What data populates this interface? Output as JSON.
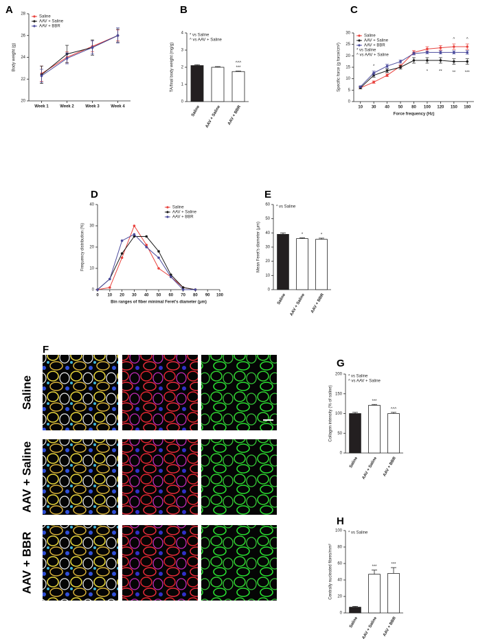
{
  "chart_data": [
    {
      "panel": "A",
      "type": "line",
      "ylabel": "Body weight (g)",
      "categories": [
        "Week 1",
        "Week 2",
        "Week 3",
        "Week 4"
      ],
      "ylim": [
        20,
        28
      ],
      "yticks": [
        20,
        22,
        24,
        26,
        28
      ],
      "legend": "upper left",
      "series": [
        {
          "name": "Saline",
          "color": "#e8413c",
          "values": [
            22.5,
            24.0,
            25.0,
            26.0
          ],
          "errors": [
            0.7,
            0.5,
            0.5,
            0.5
          ]
        },
        {
          "name": "AAV + Saline",
          "color": "#1a1a1a",
          "values": [
            22.4,
            24.3,
            24.9,
            26.0
          ],
          "errors": [
            0.8,
            0.8,
            0.7,
            0.6
          ]
        },
        {
          "name": "AAV + BBR",
          "color": "#4a4a9c",
          "values": [
            22.3,
            23.9,
            24.9,
            26.0
          ],
          "errors": [
            0.6,
            0.5,
            0.6,
            0.7
          ]
        }
      ]
    },
    {
      "panel": "B",
      "type": "bar",
      "ylabel": "TA/final body weight (mg/g)",
      "categories": [
        "Saline",
        "AAV + Saline",
        "AAV + BBR"
      ],
      "values": [
        2.1,
        2.0,
        1.75
      ],
      "errors": [
        0.05,
        0.04,
        0.03
      ],
      "colors": [
        "#231f20",
        "#ffffff",
        "#ffffff"
      ],
      "ylim": [
        0,
        4
      ],
      "yticks": [
        0,
        1,
        2,
        3,
        4
      ],
      "notes": [
        "* vs Saline",
        "^ vs AAV + Saline"
      ],
      "significance": [
        null,
        null,
        [
          "***",
          "^^^"
        ]
      ]
    },
    {
      "panel": "C",
      "type": "line",
      "ylabel": "Specific force (g force/cm²)",
      "xlabel": "Force frequency (Hz)",
      "categories": [
        "10",
        "30",
        "40",
        "50",
        "80",
        "100",
        "120",
        "150",
        "180"
      ],
      "ylim": [
        0,
        30
      ],
      "yticks": [
        0,
        5,
        10,
        15,
        20,
        25,
        30
      ],
      "legend": "upper left",
      "notes": [
        "* vs Saline",
        "^ vs AAV + Saline"
      ],
      "series": [
        {
          "name": "Saline",
          "color": "#e8413c",
          "values": [
            6,
            8.5,
            11.5,
            15.5,
            21.5,
            23,
            23.5,
            24,
            24
          ],
          "errors": [
            0.4,
            0.5,
            0.6,
            0.7,
            0.8,
            1.0,
            1.0,
            1.2,
            1.2
          ]
        },
        {
          "name": "AAV + Saline",
          "color": "#1a1a1a",
          "values": [
            6,
            11.5,
            13.5,
            15,
            18,
            18,
            18,
            17.5,
            17.5
          ],
          "errors": [
            0.4,
            0.8,
            0.8,
            0.8,
            1.2,
            1.2,
            1.2,
            1.2,
            1.2
          ],
          "significance": [
            null,
            null,
            null,
            null,
            null,
            "*",
            "**",
            "**",
            "***"
          ]
        },
        {
          "name": "AAV + BBR",
          "color": "#4a4a9c",
          "values": [
            6.5,
            12.5,
            15.5,
            17.5,
            21,
            21.5,
            21.5,
            21.5,
            21.5
          ],
          "errors": [
            0.4,
            0.8,
            0.8,
            0.7,
            0.6,
            0.6,
            0.7,
            0.7,
            0.8
          ],
          "significance": [
            null,
            "*",
            null,
            null,
            null,
            null,
            null,
            "^",
            "^"
          ]
        }
      ]
    },
    {
      "panel": "D",
      "type": "line",
      "ylabel": "Frequency distribution (%)",
      "xlabel": "Bin ranges of fiber minimal Feret's diameter (μm)",
      "x": [
        0,
        10,
        20,
        30,
        40,
        50,
        60,
        70,
        80
      ],
      "xlim": [
        0,
        100
      ],
      "xticks": [
        0,
        10,
        20,
        30,
        40,
        50,
        60,
        70,
        80,
        90,
        100
      ],
      "ylim": [
        0,
        40
      ],
      "yticks": [
        0,
        10,
        20,
        30,
        40
      ],
      "legend": "upper right",
      "series": [
        {
          "name": "Saline",
          "color": "#e8413c",
          "values": [
            0,
            1,
            15,
            30,
            21,
            10,
            6,
            1,
            0
          ]
        },
        {
          "name": "AAV + Saline",
          "color": "#1a1a1a",
          "values": [
            0,
            5,
            17,
            25,
            25,
            18,
            7,
            1,
            0
          ]
        },
        {
          "name": "AAV + BBR",
          "color": "#4a4a9c",
          "values": [
            0,
            5,
            23,
            26,
            20,
            15,
            6,
            0,
            0
          ]
        }
      ]
    },
    {
      "panel": "E",
      "type": "bar",
      "ylabel": "Mean Feret's diameter (μm)",
      "categories": [
        "Saline",
        "AAV + Saline",
        "AAV + BBR"
      ],
      "values": [
        39,
        36,
        35.5
      ],
      "errors": [
        1,
        0.5,
        0.8
      ],
      "colors": [
        "#231f20",
        "#ffffff",
        "#ffffff"
      ],
      "ylim": [
        0,
        60
      ],
      "yticks": [
        0,
        10,
        20,
        30,
        40,
        50,
        60
      ],
      "notes": [
        "* vs Saline"
      ],
      "significance": [
        null,
        [
          "*"
        ],
        [
          "*"
        ]
      ]
    },
    {
      "panel": "G",
      "type": "bar",
      "ylabel": "Collagen intensity (% of saline)",
      "categories": [
        "Saline",
        "AAV + Saline",
        "AAV + BBR"
      ],
      "values": [
        100,
        121,
        100
      ],
      "errors": [
        3,
        2,
        3
      ],
      "colors": [
        "#231f20",
        "#ffffff",
        "#ffffff"
      ],
      "ylim": [
        0,
        200
      ],
      "yticks": [
        0,
        50,
        100,
        150,
        200
      ],
      "notes": [
        "* vs Saline",
        "^ vs AAV + Saline"
      ],
      "significance": [
        null,
        [
          "***"
        ],
        [
          "^^^"
        ]
      ]
    },
    {
      "panel": "H",
      "type": "bar",
      "ylabel": "Centrally nucleated fibres/mm²",
      "categories": [
        "Saline",
        "AAV + Saline",
        "AAV + BBR"
      ],
      "values": [
        7,
        47,
        48
      ],
      "errors": [
        1,
        5,
        7
      ],
      "colors": [
        "#231f20",
        "#ffffff",
        "#ffffff"
      ],
      "ylim": [
        0,
        100
      ],
      "yticks": [
        0,
        20,
        40,
        60,
        80,
        100
      ],
      "notes": [
        "* vs Saline"
      ],
      "significance": [
        null,
        [
          "***"
        ],
        [
          "***"
        ]
      ]
    }
  ],
  "figure_f": {
    "panel": "F",
    "rows": [
      "Saline",
      "AAV + Saline",
      "AAV + BBR"
    ]
  }
}
